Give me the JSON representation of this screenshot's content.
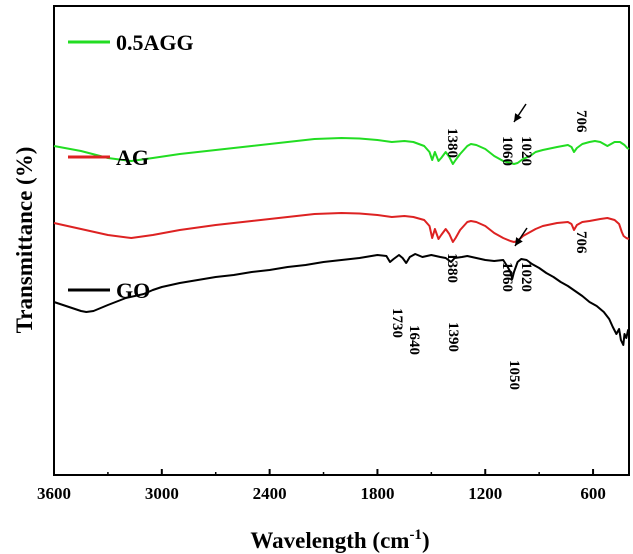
{
  "chart_data": {
    "type": "line",
    "xlabel": "Wavelength (cm",
    "xlabel_sup": "-1",
    "xlabel_end": ")",
    "ylabel": "Transmittance (%)",
    "xlim": [
      3600,
      400
    ],
    "x_reversed": true,
    "yticks_shown": false,
    "xticks": [
      "3600",
      "3000",
      "2400",
      "1800",
      "1200",
      "600"
    ],
    "xtick_values": [
      3600,
      3000,
      2400,
      1800,
      1200,
      600
    ],
    "legend_position": "top-left",
    "series": [
      {
        "name": "0.5AGG",
        "color": "#22dd22",
        "points": [
          [
            3600,
            74
          ],
          [
            3450,
            79
          ],
          [
            3300,
            86
          ],
          [
            3170,
            89
          ],
          [
            3050,
            86
          ],
          [
            2900,
            82
          ],
          [
            2700,
            78
          ],
          [
            2500,
            74
          ],
          [
            2300,
            70
          ],
          [
            2150,
            67
          ],
          [
            2000,
            66
          ],
          [
            1900,
            66.5
          ],
          [
            1800,
            68
          ],
          [
            1720,
            70
          ],
          [
            1650,
            69
          ],
          [
            1600,
            70
          ],
          [
            1540,
            74
          ],
          [
            1510,
            80
          ],
          [
            1495,
            88
          ],
          [
            1480,
            80
          ],
          [
            1460,
            89
          ],
          [
            1445,
            86
          ],
          [
            1420,
            80
          ],
          [
            1400,
            85
          ],
          [
            1380,
            92
          ],
          [
            1365,
            88
          ],
          [
            1340,
            82
          ],
          [
            1300,
            74
          ],
          [
            1280,
            72
          ],
          [
            1250,
            73
          ],
          [
            1200,
            77
          ],
          [
            1150,
            84
          ],
          [
            1100,
            89
          ],
          [
            1060,
            91
          ],
          [
            1040,
            92
          ],
          [
            1020,
            91
          ],
          [
            990,
            87
          ],
          [
            950,
            84
          ],
          [
            920,
            80
          ],
          [
            880,
            78
          ],
          [
            800,
            75
          ],
          [
            740,
            73
          ],
          [
            720,
            75
          ],
          [
            706,
            80
          ],
          [
            690,
            76
          ],
          [
            660,
            72
          ],
          [
            620,
            70
          ],
          [
            590,
            69
          ],
          [
            560,
            70
          ],
          [
            520,
            74
          ],
          [
            480,
            70
          ],
          [
            450,
            70
          ],
          [
            425,
            73
          ],
          [
            410,
            76
          ],
          [
            400,
            77
          ]
        ]
      },
      {
        "name": "AG",
        "color": "#dd2222",
        "points": [
          [
            3600,
            151
          ],
          [
            3450,
            157
          ],
          [
            3300,
            163
          ],
          [
            3170,
            166
          ],
          [
            3050,
            163
          ],
          [
            2900,
            158
          ],
          [
            2700,
            153
          ],
          [
            2500,
            149
          ],
          [
            2300,
            145
          ],
          [
            2150,
            142
          ],
          [
            2000,
            141
          ],
          [
            1900,
            141.5
          ],
          [
            1800,
            143
          ],
          [
            1720,
            145
          ],
          [
            1650,
            144
          ],
          [
            1600,
            145
          ],
          [
            1540,
            148
          ],
          [
            1510,
            154
          ],
          [
            1495,
            166
          ],
          [
            1480,
            157
          ],
          [
            1460,
            167
          ],
          [
            1445,
            163
          ],
          [
            1420,
            157
          ],
          [
            1400,
            162
          ],
          [
            1380,
            170
          ],
          [
            1365,
            166
          ],
          [
            1340,
            158
          ],
          [
            1300,
            150
          ],
          [
            1280,
            149
          ],
          [
            1250,
            150
          ],
          [
            1200,
            154
          ],
          [
            1150,
            161
          ],
          [
            1100,
            166
          ],
          [
            1060,
            169
          ],
          [
            1040,
            170
          ],
          [
            1020,
            169
          ],
          [
            990,
            164
          ],
          [
            950,
            160
          ],
          [
            920,
            157
          ],
          [
            880,
            154
          ],
          [
            800,
            151
          ],
          [
            740,
            150
          ],
          [
            720,
            152
          ],
          [
            706,
            158
          ],
          [
            690,
            153
          ],
          [
            660,
            150
          ],
          [
            620,
            149
          ],
          [
            590,
            148
          ],
          [
            560,
            147
          ],
          [
            520,
            146
          ],
          [
            480,
            148
          ],
          [
            455,
            152
          ],
          [
            440,
            160
          ],
          [
            430,
            164
          ],
          [
            415,
            166
          ],
          [
            400,
            167
          ]
        ]
      },
      {
        "name": "GO",
        "color": "#000000",
        "points": [
          [
            3600,
            230
          ],
          [
            3550,
            233
          ],
          [
            3500,
            236
          ],
          [
            3450,
            239
          ],
          [
            3420,
            240
          ],
          [
            3380,
            239
          ],
          [
            3300,
            233
          ],
          [
            3200,
            226
          ],
          [
            3100,
            222
          ],
          [
            3050,
            218
          ],
          [
            3000,
            215
          ],
          [
            2900,
            211
          ],
          [
            2800,
            208
          ],
          [
            2700,
            205
          ],
          [
            2600,
            203
          ],
          [
            2500,
            200
          ],
          [
            2400,
            198
          ],
          [
            2300,
            195
          ],
          [
            2200,
            193
          ],
          [
            2100,
            190
          ],
          [
            2000,
            188
          ],
          [
            1900,
            186
          ],
          [
            1800,
            183
          ],
          [
            1750,
            184
          ],
          [
            1730,
            190
          ],
          [
            1710,
            187
          ],
          [
            1680,
            183
          ],
          [
            1660,
            186
          ],
          [
            1640,
            191
          ],
          [
            1620,
            185
          ],
          [
            1590,
            182
          ],
          [
            1550,
            185
          ],
          [
            1500,
            183
          ],
          [
            1450,
            185
          ],
          [
            1420,
            186
          ],
          [
            1390,
            190
          ],
          [
            1370,
            186
          ],
          [
            1330,
            185
          ],
          [
            1300,
            184
          ],
          [
            1250,
            186
          ],
          [
            1200,
            188
          ],
          [
            1150,
            189
          ],
          [
            1100,
            188
          ],
          [
            1075,
            195
          ],
          [
            1060,
            200
          ],
          [
            1050,
            207
          ],
          [
            1040,
            200
          ],
          [
            1020,
            190
          ],
          [
            1000,
            187
          ],
          [
            970,
            188
          ],
          [
            940,
            192
          ],
          [
            900,
            196
          ],
          [
            860,
            201
          ],
          [
            820,
            205
          ],
          [
            780,
            210
          ],
          [
            740,
            214
          ],
          [
            700,
            219
          ],
          [
            660,
            224
          ],
          [
            620,
            230
          ],
          [
            580,
            234
          ],
          [
            540,
            240
          ],
          [
            510,
            247
          ],
          [
            490,
            255
          ],
          [
            470,
            262
          ],
          [
            455,
            257
          ],
          [
            445,
            268
          ],
          [
            432,
            273
          ],
          [
            425,
            262
          ],
          [
            415,
            266
          ],
          [
            405,
            258
          ],
          [
            400,
            262
          ]
        ]
      }
    ],
    "annotations": [
      {
        "text": "1380",
        "series": "0.5AGG"
      },
      {
        "text": "1060",
        "series": "0.5AGG"
      },
      {
        "text": "1020",
        "series": "0.5AGG"
      },
      {
        "text": "706",
        "series": "0.5AGG"
      },
      {
        "text": "1380",
        "series": "AG"
      },
      {
        "text": "1060",
        "series": "AG"
      },
      {
        "text": "1020",
        "series": "AG"
      },
      {
        "text": "706",
        "series": "AG"
      },
      {
        "text": "1730",
        "series": "GO"
      },
      {
        "text": "1640",
        "series": "GO"
      },
      {
        "text": "1390",
        "series": "GO"
      },
      {
        "text": "1050",
        "series": "GO"
      }
    ]
  }
}
